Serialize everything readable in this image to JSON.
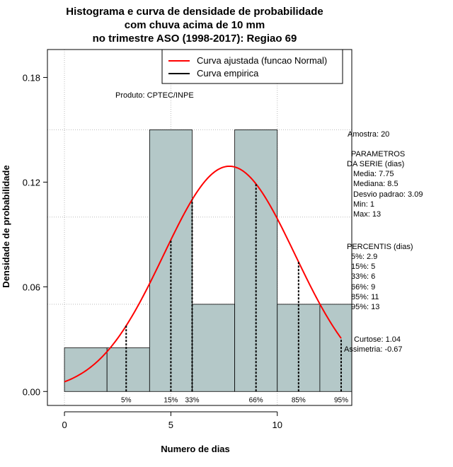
{
  "chart_data": {
    "type": "bar",
    "title_lines": [
      "Histograma e curva de densidade de probabilidade",
      "com chuva acima de 10 mm",
      "no trimestre ASO (1998-2017): Regiao 69"
    ],
    "xlabel": "Numero de dias",
    "ylabel": "Densidade de probabilidade",
    "xlim": [
      -0.8,
      13.5
    ],
    "ylim": [
      -0.008,
      0.196
    ],
    "xticks": [
      0,
      5,
      10
    ],
    "xtick_labels": [
      "0",
      "5",
      "10"
    ],
    "yticks": [
      0.0,
      0.06,
      0.12,
      0.18
    ],
    "ytick_labels": [
      "0.00",
      "0.06",
      "0.12",
      "0.18"
    ],
    "grid": true,
    "bins": [
      {
        "x0": 0,
        "x1": 2,
        "density": 0.025
      },
      {
        "x0": 2,
        "x1": 4,
        "density": 0.025
      },
      {
        "x0": 4,
        "x1": 6,
        "density": 0.15
      },
      {
        "x0": 6,
        "x1": 8,
        "density": 0.05
      },
      {
        "x0": 8,
        "x1": 10,
        "density": 0.15
      },
      {
        "x0": 10,
        "x1": 12,
        "density": 0.05
      },
      {
        "x0": 12,
        "x1": 13.5,
        "density": 0.05
      }
    ],
    "bar_color": "#b4c8c8",
    "normal_curve": {
      "mean": 7.75,
      "sd": 3.09,
      "x_range": [
        0,
        13
      ],
      "color": "#ff0000"
    },
    "percentile_markers": [
      {
        "label": "5%",
        "x": 2.9
      },
      {
        "label": "15%",
        "x": 5
      },
      {
        "label": "33%",
        "x": 6
      },
      {
        "label": "66%",
        "x": 9
      },
      {
        "label": "85%",
        "x": 11
      },
      {
        "label": "95%",
        "x": 13
      }
    ],
    "legend": {
      "position": "top-right",
      "entries": [
        {
          "label": "Curva ajustada (funcao Normal)",
          "color": "#ff0000"
        },
        {
          "label": "Curva empirica",
          "color": "#000000"
        }
      ]
    },
    "annotation": "Produto: CPTEC/INPE"
  },
  "stats_panel": {
    "amostra": "Amostra: 20",
    "parametros_lines": [
      "PARAMETROS",
      "DA SERIE (dias)",
      "Media: 7.75",
      "Mediana: 8.5",
      "Desvio padrao: 3.09",
      "Min: 1",
      "Max: 13"
    ],
    "percentis_lines": [
      "PERCENTIS (dias)",
      "5%: 2.9",
      "15%: 5",
      "33%: 6",
      "66%: 9",
      "85%: 11",
      "95%: 13"
    ],
    "curtose": "Curtose: 1.04",
    "assimetria": "Assimetria: -0.67"
  }
}
